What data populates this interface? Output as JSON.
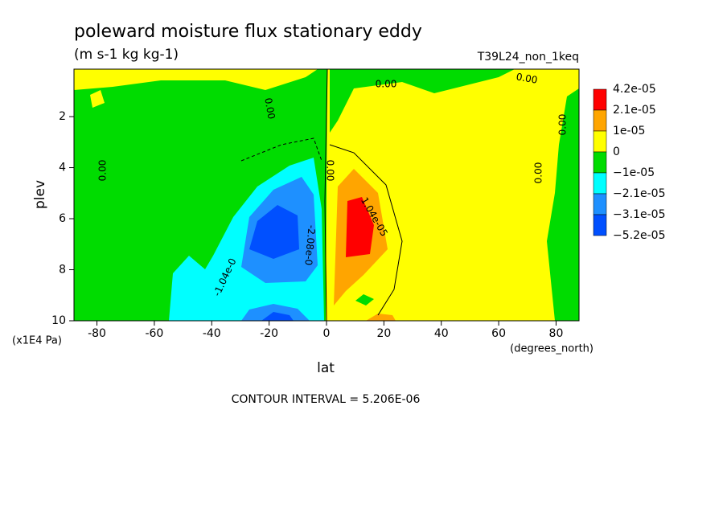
{
  "chart_data": {
    "type": "contour",
    "title": "poleward moisture flux stationary eddy",
    "subtitle": "(m s-1 kg kg-1)",
    "run_label": "T39L24_non_1keq",
    "xlabel": "lat",
    "ylabel": "plev",
    "xunit": "(degrees_north)",
    "yunit": "(x1E4 Pa)",
    "footer": "CONTOUR INTERVAL = 5.206E-06",
    "xlim": [
      -88,
      88
    ],
    "xticks": [
      -80,
      -60,
      -40,
      -20,
      0,
      20,
      40,
      60,
      80
    ],
    "ylim": [
      0.14,
      10
    ],
    "yticks": [
      2,
      4,
      6,
      8,
      10
    ],
    "colorbar": {
      "colors": [
        "#ff0000",
        "#ffa500",
        "#ffff00",
        "#00dc00",
        "#00ffff",
        "#1e90ff",
        "#0050ff"
      ],
      "levels": [
        {
          "value": 4.2e-05,
          "label": "4.2e-05"
        },
        {
          "value": 2.1e-05,
          "label": "2.1e-05"
        },
        {
          "value": 1e-05,
          "label": "1e-05"
        },
        0,
        {
          "value": -1e-05,
          "label": "−1e-05"
        },
        {
          "value": -2.1e-05,
          "label": "−2.1e-05"
        },
        {
          "value": -3.1e-05,
          "label": "−3.1e-05"
        },
        {
          "value": -5.2e-05,
          "label": "−5.2e-05"
        }
      ]
    },
    "contour_labels": [
      "0.00",
      "0.00",
      "0.00",
      "0.00",
      "0.00",
      "0.00",
      "0.00",
      "-1.04e-0",
      "-2.08e-0",
      "1.04e-05"
    ]
  }
}
